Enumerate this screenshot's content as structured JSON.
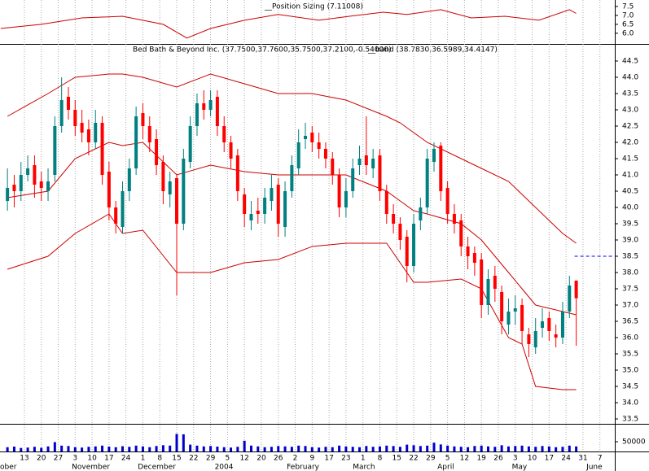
{
  "chart_data": {
    "type": "candlestick",
    "title": "Bed Bath & Beyond Inc. (37.7500,37.7600,35.7500,37.2100,-0.54000)",
    "band_title": "__band (38.7830,36.5989,34.4147)",
    "up_color": "#008080",
    "down_color": "#ff0000",
    "band_color": "#cc0000",
    "volume_color": "#0000cc",
    "xlim": [
      -2.2,
      179.4
    ],
    "ylim": [
      33.375,
      45.0
    ],
    "yticks": [
      33.5,
      {
        "value": 34,
        "label": "34.0"
      },
      34.5,
      {
        "value": 35,
        "label": "35.0"
      },
      35.5,
      {
        "value": 36,
        "label": "36.0"
      },
      36.5,
      {
        "value": 37,
        "label": "37.0"
      },
      37.5,
      {
        "value": 38,
        "label": "38.0"
      },
      38.5,
      {
        "value": 39,
        "label": "39.0"
      },
      39.5,
      {
        "value": 40,
        "label": "40.0"
      },
      40.5,
      {
        "value": 41,
        "label": "41.0"
      },
      41.5,
      {
        "value": 42,
        "label": "42.0"
      },
      42.5,
      {
        "value": 43,
        "label": "43.0"
      },
      43.5,
      {
        "value": 44,
        "label": "44.0"
      },
      44.5
    ],
    "xticks": [
      {
        "value": 5,
        "label": "13"
      },
      {
        "value": 10,
        "label": "20"
      },
      {
        "value": 15,
        "label": "27"
      },
      {
        "value": 20,
        "label": "3"
      },
      {
        "value": 25,
        "label": "10"
      },
      {
        "value": 30,
        "label": "17"
      },
      {
        "value": 35,
        "label": "24"
      },
      {
        "value": 40,
        "label": "1"
      },
      {
        "value": 45,
        "label": "8"
      },
      {
        "value": 50,
        "label": "15"
      },
      {
        "value": 55,
        "label": "22"
      },
      {
        "value": 60,
        "label": "29"
      },
      {
        "value": 65,
        "label": "5"
      },
      {
        "value": 70,
        "label": "12"
      },
      {
        "value": 75,
        "label": "20"
      },
      {
        "value": 80,
        "label": "26"
      },
      {
        "value": 85,
        "label": "2"
      },
      {
        "value": 90,
        "label": "9"
      },
      {
        "value": 95,
        "label": "17"
      },
      {
        "value": 100,
        "label": "23"
      },
      {
        "value": 105,
        "label": "1"
      },
      {
        "value": 110,
        "label": "8"
      },
      {
        "value": 115,
        "label": "15"
      },
      {
        "value": 120,
        "label": "22"
      },
      {
        "value": 125,
        "label": "29"
      },
      {
        "value": 130,
        "label": "5"
      },
      {
        "value": 135,
        "label": "12"
      },
      {
        "value": 140,
        "label": "19"
      },
      {
        "value": 145,
        "label": "26"
      },
      {
        "value": 150,
        "label": "3"
      },
      {
        "value": 155,
        "label": "10"
      },
      {
        "value": 160,
        "label": "17"
      },
      {
        "value": 165,
        "label": "24"
      },
      {
        "value": 170,
        "label": "31"
      },
      {
        "value": 175,
        "label": "7"
      }
    ],
    "month_labels": [
      {
        "value": -2.2,
        "label": "ober"
      },
      {
        "value": 19,
        "label": "November"
      },
      {
        "value": 38.5,
        "label": "December"
      },
      {
        "value": 61.2,
        "label": "2004"
      },
      {
        "value": 82.5,
        "label": "February"
      },
      {
        "value": 102,
        "label": "March"
      },
      {
        "value": 127,
        "label": "April"
      },
      {
        "value": 149,
        "label": "May"
      },
      {
        "value": 171,
        "label": "June"
      }
    ],
    "grid": true,
    "x": [
      0,
      2,
      4,
      6,
      8,
      10,
      12,
      14,
      16,
      18,
      20,
      22,
      24,
      26,
      28,
      30,
      32,
      34,
      36,
      38,
      40,
      42,
      44,
      46,
      48,
      50,
      52,
      54,
      56,
      58,
      60,
      62,
      64,
      66,
      68,
      70,
      72,
      74,
      76,
      78,
      80,
      82,
      84,
      86,
      88,
      90,
      92,
      94,
      96,
      98,
      100,
      102,
      104,
      106,
      108,
      110,
      112,
      114,
      116,
      118,
      120,
      122,
      124,
      126,
      128,
      130,
      132,
      134,
      136,
      138,
      140,
      142,
      144,
      146,
      148,
      150,
      152,
      154,
      156,
      158,
      160,
      162,
      164,
      166,
      168
    ],
    "open": [
      40.2,
      40.7,
      40.5,
      41.0,
      41.3,
      40.8,
      40.5,
      41.0,
      42.5,
      43.4,
      43.0,
      42.6,
      42.4,
      42.0,
      42.6,
      41.1,
      40.0,
      39.4,
      40.5,
      41.2,
      42.9,
      42.5,
      42.1,
      41.4,
      40.4,
      40.9,
      39.5,
      41.4,
      42.5,
      43.2,
      43.0,
      43.4,
      42.5,
      42.0,
      41.6,
      40.4,
      39.6,
      39.9,
      39.8,
      40.2,
      40.7,
      39.4,
      40.5,
      41.2,
      42.1,
      42.3,
      42.0,
      41.8,
      41.5,
      41.0,
      40.0,
      40.5,
      41.3,
      41.6,
      41.2,
      41.6,
      40.5,
      39.8,
      39.5,
      39.1,
      38.2,
      39.6,
      40.0,
      41.4,
      41.9,
      40.6,
      39.8,
      39.6,
      38.8,
      38.6,
      38.4,
      37.0,
      37.9,
      37.4,
      36.4,
      36.8,
      37.0,
      36.1,
      35.7,
      36.3,
      36.6,
      36.1,
      36.0,
      36.8,
      37.75
    ],
    "high": [
      41.2,
      41.0,
      41.4,
      41.6,
      41.6,
      41.1,
      41.2,
      42.8,
      44.0,
      43.7,
      43.3,
      43.0,
      42.7,
      43.0,
      42.8,
      41.4,
      40.2,
      40.8,
      41.5,
      43.1,
      43.2,
      42.8,
      42.4,
      41.6,
      41.1,
      41.0,
      41.8,
      42.8,
      43.5,
      43.6,
      43.6,
      43.6,
      42.8,
      42.2,
      41.8,
      40.6,
      40.2,
      40.3,
      40.6,
      41.0,
      40.9,
      40.8,
      41.6,
      42.4,
      42.6,
      42.5,
      42.3,
      42.0,
      41.7,
      41.2,
      40.9,
      41.5,
      41.9,
      42.8,
      41.8,
      41.8,
      40.7,
      40.1,
      39.7,
      39.3,
      39.8,
      40.3,
      41.8,
      42.0,
      42.0,
      40.8,
      40.1,
      39.8,
      39.1,
      38.8,
      38.6,
      38.1,
      38.2,
      37.6,
      37.2,
      37.3,
      37.2,
      36.3,
      36.6,
      36.9,
      36.8,
      36.4,
      37.1,
      37.9,
      37.76
    ],
    "low": [
      39.9,
      40.0,
      40.2,
      40.8,
      40.3,
      40.2,
      40.2,
      40.8,
      42.3,
      42.7,
      42.2,
      42.0,
      41.6,
      41.8,
      40.7,
      39.6,
      39.2,
      39.2,
      40.2,
      41.0,
      42.1,
      41.7,
      41.0,
      40.1,
      40.0,
      37.3,
      39.3,
      41.2,
      42.2,
      42.7,
      42.8,
      42.2,
      41.7,
      41.2,
      40.2,
      39.4,
      39.3,
      39.5,
      39.5,
      39.9,
      39.1,
      39.1,
      40.3,
      41.0,
      41.8,
      41.7,
      41.5,
      41.2,
      40.7,
      39.7,
      39.7,
      40.3,
      41.0,
      41.0,
      40.9,
      40.2,
      39.5,
      39.2,
      38.7,
      37.7,
      38.0,
      39.3,
      39.8,
      41.1,
      40.2,
      39.5,
      39.2,
      38.5,
      38.1,
      37.9,
      36.6,
      36.7,
      37.1,
      36.1,
      36.1,
      36.4,
      35.8,
      35.4,
      35.5,
      36.0,
      35.9,
      35.7,
      35.8,
      36.6,
      35.75
    ],
    "close": [
      40.6,
      40.5,
      41.0,
      41.2,
      40.7,
      40.6,
      40.8,
      42.5,
      43.3,
      43.0,
      42.5,
      42.3,
      42.0,
      42.6,
      41.0,
      40.0,
      39.5,
      40.5,
      41.2,
      42.8,
      42.5,
      42.0,
      41.3,
      40.5,
      40.8,
      39.5,
      41.5,
      42.5,
      43.2,
      43.0,
      43.3,
      42.5,
      42.0,
      41.5,
      40.5,
      39.8,
      39.8,
      39.8,
      40.3,
      40.6,
      39.5,
      40.5,
      41.3,
      42.0,
      42.2,
      42.0,
      41.8,
      41.5,
      41.0,
      40.0,
      40.5,
      41.2,
      41.5,
      41.3,
      41.5,
      40.5,
      39.8,
      39.5,
      39.0,
      38.2,
      39.5,
      40.0,
      41.5,
      41.8,
      40.5,
      39.8,
      39.5,
      38.8,
      38.5,
      38.3,
      37.0,
      37.8,
      37.5,
      36.5,
      36.8,
      36.9,
      36.2,
      35.8,
      36.2,
      36.5,
      36.2,
      36.0,
      36.8,
      37.6,
      37.21
    ],
    "volume_ylim": [
      0,
      137500
    ],
    "volume_ticks": [
      50000
    ],
    "volume": [
      22000,
      25000,
      18000,
      20000,
      24000,
      19000,
      26000,
      48000,
      30000,
      28000,
      22000,
      20000,
      24000,
      26000,
      30000,
      25000,
      22000,
      27000,
      24000,
      30000,
      26000,
      22000,
      28000,
      32000,
      30000,
      90000,
      88000,
      35000,
      30000,
      26000,
      28000,
      25000,
      22000,
      20000,
      24000,
      55000,
      30000,
      26000,
      22000,
      24000,
      28000,
      26000,
      24000,
      30000,
      28000,
      22000,
      20000,
      24000,
      22000,
      30000,
      26000,
      24000,
      22000,
      28000,
      24000,
      26000,
      30000,
      28000,
      24000,
      35000,
      32000,
      28000,
      30000,
      45000,
      36000,
      30000,
      26000,
      24000,
      22000,
      28000,
      30000,
      26000,
      24000,
      32000,
      26000,
      28000,
      30000,
      26000,
      24000,
      28000,
      26000,
      22000,
      24000,
      30000,
      26000
    ],
    "band_x": [
      0,
      12,
      20,
      30,
      34,
      40,
      50,
      60,
      70,
      80,
      90,
      100,
      112,
      116,
      120,
      124,
      134,
      140,
      148,
      152,
      156,
      164,
      168
    ],
    "band_upper": [
      42.8,
      43.5,
      44.0,
      44.1,
      44.1,
      44.0,
      43.7,
      44.1,
      43.8,
      43.5,
      43.5,
      43.3,
      42.8,
      42.6,
      42.3,
      42.0,
      41.5,
      41.2,
      40.8,
      40.4,
      40.0,
      39.2,
      38.9
    ],
    "band_middle": [
      40.3,
      40.5,
      41.5,
      42.0,
      41.9,
      42.0,
      41.0,
      41.3,
      41.1,
      41.0,
      41.0,
      41.0,
      40.5,
      40.2,
      39.9,
      39.8,
      39.5,
      39.0,
      38.0,
      37.5,
      37.0,
      36.8,
      36.7
    ],
    "band_lower": [
      38.1,
      38.5,
      39.2,
      39.8,
      39.2,
      39.3,
      38.0,
      38.0,
      38.3,
      38.4,
      38.8,
      38.9,
      38.9,
      38.3,
      37.7,
      37.7,
      37.8,
      37.5,
      36.0,
      35.8,
      34.5,
      34.4,
      34.4
    ],
    "target_line": 38.5,
    "target_color": "#0000ff",
    "indicator": {
      "title": "__Position Sizing (7.11008)",
      "color": "#cc0000",
      "ylim": [
        5.45,
        7.86
      ],
      "yticks": [
        {
          "value": 6,
          "label": "6.0"
        },
        6.5,
        {
          "value": 7,
          "label": "7.0"
        },
        7.5
      ],
      "x": [
        -2,
        10,
        22,
        34,
        46,
        53,
        60,
        70,
        80,
        92,
        101,
        111,
        118,
        128,
        137,
        147,
        157,
        166,
        168
      ],
      "values": [
        6.27,
        6.5,
        6.86,
        6.95,
        6.5,
        5.73,
        6.27,
        6.73,
        7.05,
        6.73,
        6.95,
        7.18,
        7.05,
        7.32,
        6.86,
        6.95,
        6.73,
        7.32,
        7.11
      ]
    }
  }
}
